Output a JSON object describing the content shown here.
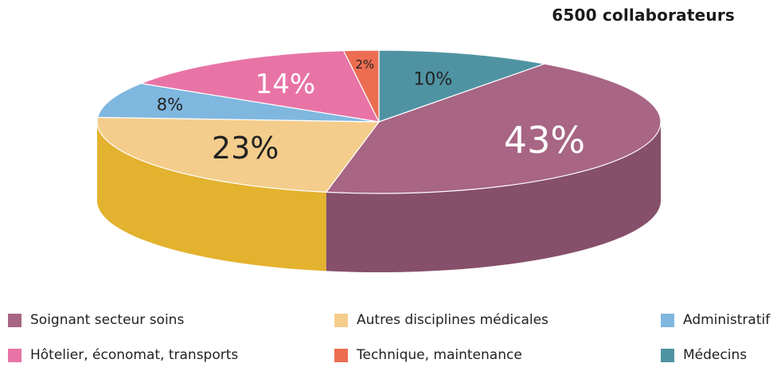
{
  "chart_data": {
    "type": "pie",
    "title": "6500 collaborateurs",
    "slices": [
      {
        "name": "Médecins",
        "value": 10,
        "label": "10%",
        "color": "#4f93a3",
        "side": "#3f7b8a"
      },
      {
        "name": "Soignant secteur soins",
        "value": 43,
        "label": "43%",
        "color": "#a86584",
        "side": "#864f6a"
      },
      {
        "name": "Autres disciplines médicales",
        "value": 23,
        "label": "23%",
        "color": "#f4cd8c",
        "side": "#e3b22e"
      },
      {
        "name": "Administratif",
        "value": 8,
        "label": "8%",
        "color": "#7fb7df",
        "side": "#5f9fc7"
      },
      {
        "name": "Hôtelier, économat, transports",
        "value": 14,
        "label": "14%",
        "color": "#e874a6",
        "side": "#c85c8a"
      },
      {
        "name": "Technique, maintenance",
        "value": 2,
        "label": "2%",
        "color": "#ec6d52",
        "side": "#c9553f"
      }
    ],
    "legend": [
      "Soignant secteur soins",
      "Autres disciplines médicales",
      "Administratif",
      "Hôtelier, économat, transports",
      "Technique, maintenance",
      "Médecins"
    ]
  }
}
